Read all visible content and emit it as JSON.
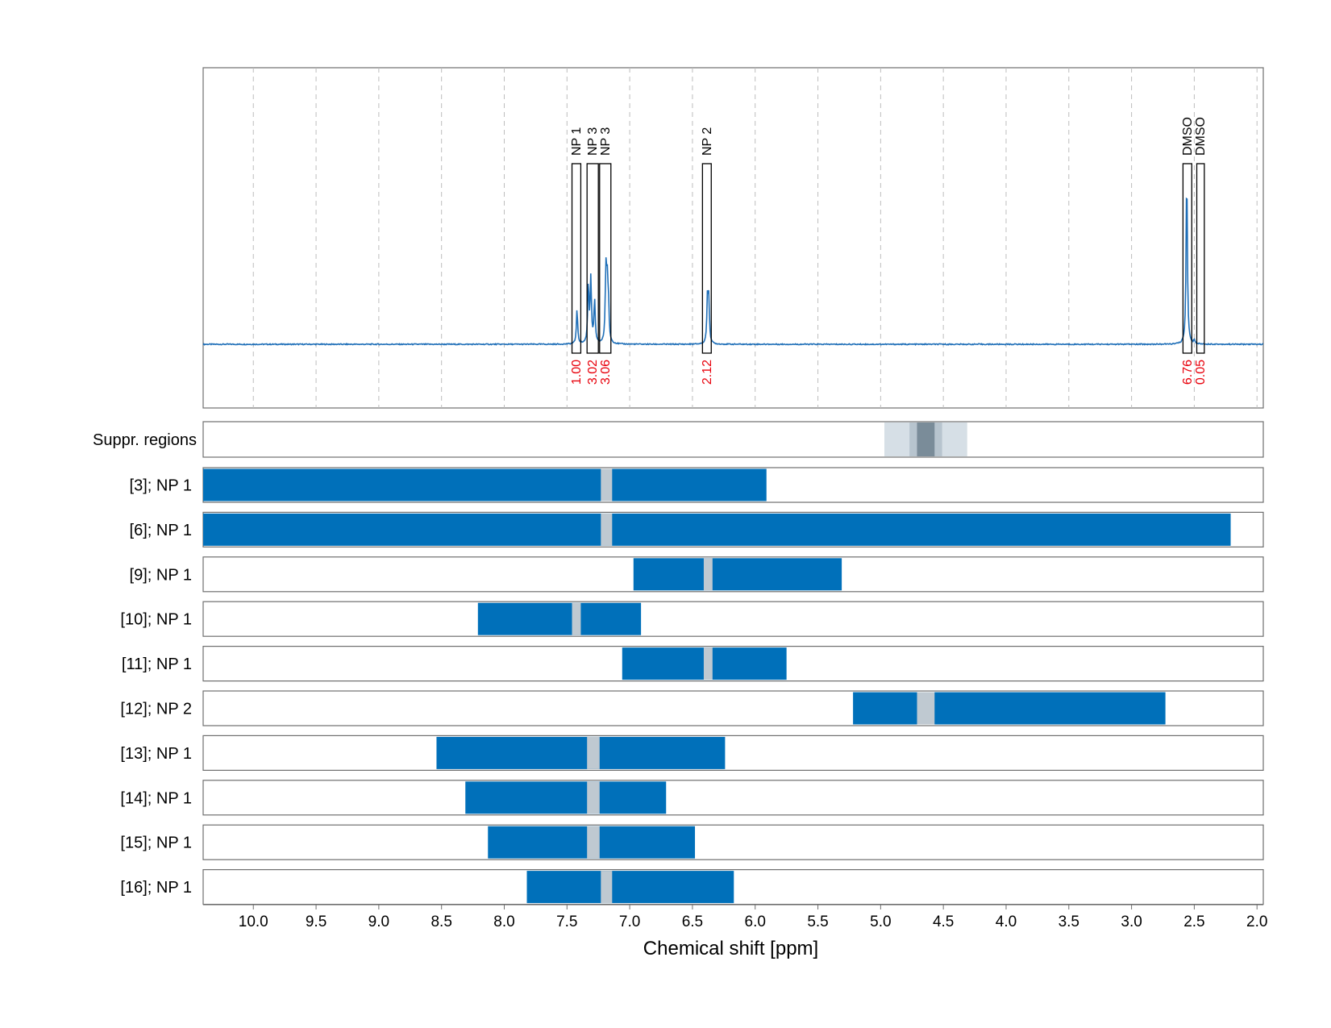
{
  "chart_data": {
    "type": "nmr-spectrum-with-range-bars",
    "xlabel": "Chemical shift [ppm]",
    "xlim": [
      10.4,
      1.95
    ],
    "x_reversed": true,
    "x_ticks": [
      "10.0",
      "9.5",
      "9.0",
      "8.5",
      "8.0",
      "7.5",
      "7.0",
      "6.5",
      "6.0",
      "5.5",
      "5.0",
      "4.5",
      "4.0",
      "3.5",
      "3.0",
      "2.5",
      "2.0"
    ],
    "colors": {
      "spectrum": "#1f6fb8",
      "bar": "#0070ba",
      "gap": "#bfc9d1",
      "integral_label": "#e8000b",
      "suppr_light": "#d6dfe6",
      "suppr_mid": "#b7c4ce",
      "suppr_dark": "#7a8c99",
      "gridline": "#bdbdbd"
    },
    "spectrum": {
      "peaks": [
        {
          "ppm": 7.42,
          "height": 0.2
        },
        {
          "ppm": 7.33,
          "height": 0.34
        },
        {
          "ppm": 7.31,
          "height": 0.37
        },
        {
          "ppm": 7.28,
          "height": 0.25
        },
        {
          "ppm": 7.19,
          "height": 0.39
        },
        {
          "ppm": 7.18,
          "height": 0.32
        },
        {
          "ppm": 7.17,
          "height": 0.22
        },
        {
          "ppm": 6.38,
          "height": 0.26
        },
        {
          "ppm": 6.37,
          "height": 0.24
        },
        {
          "ppm": 2.56,
          "height": 1.0
        },
        {
          "ppm": 2.5,
          "height": 0.02
        }
      ],
      "regions": [
        {
          "label": "NP 1",
          "from": 7.46,
          "to": 7.39,
          "integral": "1.00"
        },
        {
          "label": "NP 3",
          "from": 7.34,
          "to": 7.25,
          "integral": "3.02"
        },
        {
          "label": "NP 3",
          "from": 7.24,
          "to": 7.15,
          "integral": "3.06"
        },
        {
          "label": "NP 2",
          "from": 6.42,
          "to": 6.35,
          "integral": "2.12"
        },
        {
          "label": "DMSO",
          "from": 2.59,
          "to": 2.52,
          "integral": "6.76"
        },
        {
          "label": "DMSO",
          "from": 2.48,
          "to": 2.42,
          "integral": "0.05"
        }
      ]
    },
    "suppression": {
      "label": "Suppr. regions",
      "bands": [
        {
          "from": 4.97,
          "to": 4.31,
          "tone": "light"
        },
        {
          "from": 4.77,
          "to": 4.51,
          "tone": "mid"
        },
        {
          "from": 4.71,
          "to": 4.57,
          "tone": "dark"
        }
      ]
    },
    "rows": [
      {
        "label": "[3]; NP 1",
        "from": 10.4,
        "to": 5.91,
        "gap_from": 7.23,
        "gap_to": 7.14
      },
      {
        "label": "[6]; NP 1",
        "from": 10.4,
        "to": 2.21,
        "gap_from": 7.23,
        "gap_to": 7.14
      },
      {
        "label": "[9]; NP 1",
        "from": 6.97,
        "to": 5.31,
        "gap_from": 6.41,
        "gap_to": 6.34
      },
      {
        "label": "[10]; NP 1",
        "from": 8.21,
        "to": 6.91,
        "gap_from": 7.46,
        "gap_to": 7.39
      },
      {
        "label": "[11]; NP 1",
        "from": 7.06,
        "to": 5.75,
        "gap_from": 6.41,
        "gap_to": 6.34
      },
      {
        "label": "[12]; NP 2",
        "from": 5.22,
        "to": 2.73,
        "gap_from": 4.71,
        "gap_to": 4.57
      },
      {
        "label": "[13]; NP 1",
        "from": 8.54,
        "to": 6.24,
        "gap_from": 7.34,
        "gap_to": 7.24
      },
      {
        "label": "[14]; NP 1",
        "from": 8.31,
        "to": 6.71,
        "gap_from": 7.34,
        "gap_to": 7.24
      },
      {
        "label": "[15]; NP 1",
        "from": 8.13,
        "to": 6.48,
        "gap_from": 7.34,
        "gap_to": 7.24
      },
      {
        "label": "[16]; NP 1",
        "from": 7.82,
        "to": 6.17,
        "gap_from": 7.23,
        "gap_to": 7.14
      }
    ]
  }
}
